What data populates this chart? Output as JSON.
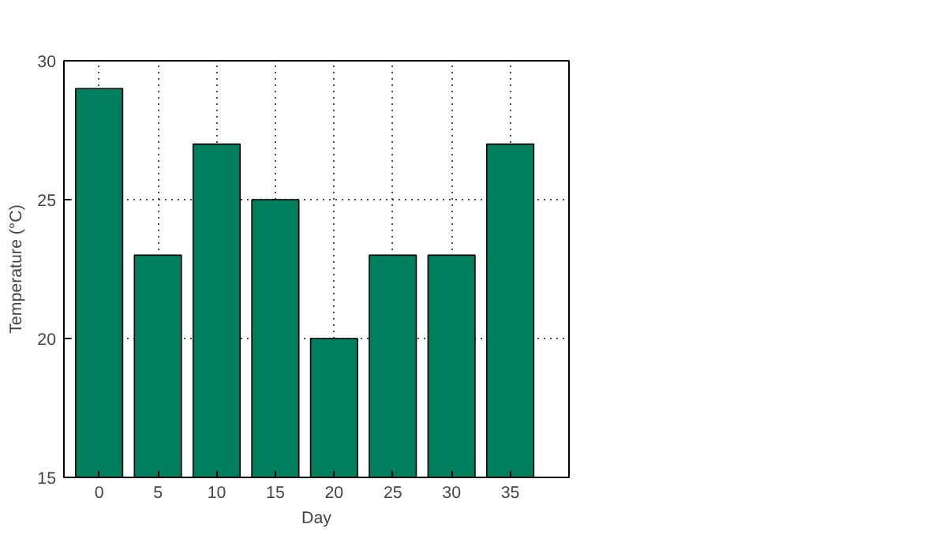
{
  "chart_data": {
    "type": "bar",
    "xlabel": "Day",
    "ylabel": "Temperature (°C)",
    "x": [
      0,
      5,
      10,
      15,
      20,
      25,
      30,
      35
    ],
    "values": [
      29,
      23,
      27,
      25,
      20,
      23,
      23,
      27
    ],
    "color": "#007f5f",
    "xlim": [
      -3,
      40
    ],
    "xticks": [
      0,
      5,
      10,
      15,
      20,
      25,
      30,
      35
    ],
    "ylim": [
      15,
      30
    ],
    "yticks": [
      15,
      20,
      25,
      30
    ],
    "grid": true,
    "line_style": "dotted"
  }
}
